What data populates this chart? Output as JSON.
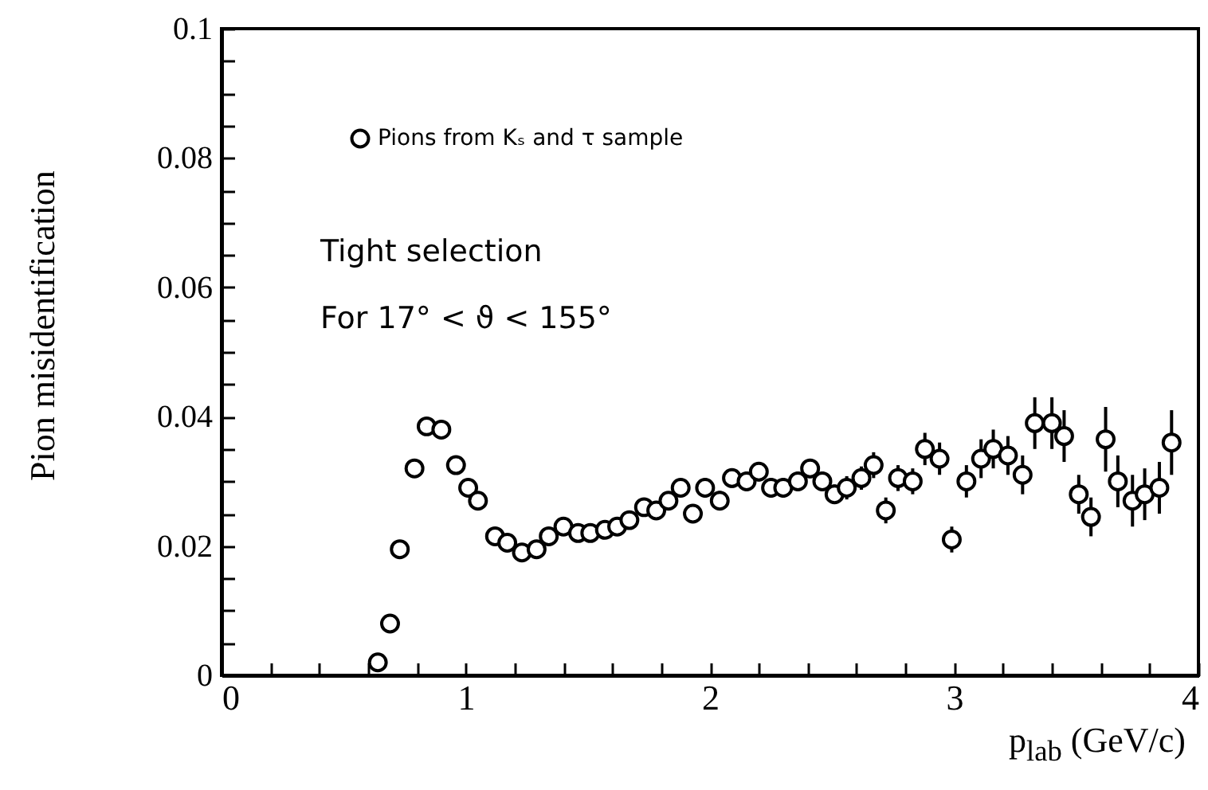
{
  "chart_data": {
    "type": "scatter",
    "xlabel": "p$_{lab}$ (GeV/c)",
    "ylabel": "Pion misidentification",
    "annotations": [
      "Tight selection",
      "For  17° < ϑ < 155°"
    ],
    "x": [
      0.64,
      0.69,
      0.73,
      0.79,
      0.84,
      0.9,
      0.96,
      1.01,
      1.05,
      1.12,
      1.17,
      1.23,
      1.29,
      1.34,
      1.4,
      1.46,
      1.51,
      1.57,
      1.62,
      1.67,
      1.73,
      1.78,
      1.83,
      1.88,
      1.93,
      1.98,
      2.04,
      2.09,
      2.15,
      2.2,
      2.25,
      2.3,
      2.36,
      2.41,
      2.46,
      2.51,
      2.56,
      2.62,
      2.67,
      2.72,
      2.77,
      2.83,
      2.88,
      2.94,
      2.99,
      3.05,
      3.11,
      3.16,
      3.22,
      3.28,
      3.33,
      3.4,
      3.45,
      3.51,
      3.56,
      3.62,
      3.67,
      3.73,
      3.78,
      3.84,
      3.89
    ],
    "series": [
      {
        "name": "Pions from Kₛ and τ sample",
        "color": "#000000",
        "values": [
          0.002,
          0.008,
          0.0195,
          0.032,
          0.0385,
          0.038,
          0.0325,
          0.029,
          0.027,
          0.0215,
          0.0205,
          0.019,
          0.0195,
          0.0215,
          0.023,
          0.022,
          0.022,
          0.0225,
          0.023,
          0.024,
          0.026,
          0.0255,
          0.027,
          0.029,
          0.025,
          0.029,
          0.027,
          0.0305,
          0.03,
          0.0315,
          0.029,
          0.029,
          0.03,
          0.032,
          0.03,
          0.028,
          0.029,
          0.0305,
          0.0325,
          0.0255,
          0.0305,
          0.03,
          0.035,
          0.0335,
          0.021,
          0.03,
          0.0335,
          0.035,
          0.034,
          0.031,
          0.039,
          0.039,
          0.037,
          0.028,
          0.0245,
          0.0365,
          0.03,
          0.027,
          0.028,
          0.029,
          0.036
        ],
        "errors": [
          null,
          null,
          null,
          null,
          null,
          null,
          null,
          null,
          null,
          null,
          null,
          null,
          null,
          null,
          null,
          null,
          null,
          null,
          null,
          0.001,
          0.001,
          0.001,
          0.0012,
          0.0012,
          0.0012,
          0.0015,
          0.0015,
          0.0015,
          0.0015,
          0.0015,
          0.0015,
          0.0015,
          0.0015,
          0.0015,
          0.0015,
          0.0015,
          0.0018,
          0.0018,
          0.002,
          0.002,
          0.002,
          0.002,
          0.0025,
          0.0025,
          0.002,
          0.0025,
          0.003,
          0.003,
          0.003,
          0.003,
          0.004,
          0.004,
          0.004,
          0.003,
          0.003,
          0.005,
          0.004,
          0.004,
          0.004,
          0.004,
          0.005
        ]
      }
    ],
    "marker": "circle",
    "legend": "top left",
    "xlim": [
      0,
      4
    ],
    "xticks": [
      0,
      {
        "value": 0.2,
        "label": null
      },
      {
        "value": 0.4,
        "label": null
      },
      {
        "value": 0.6,
        "label": null
      },
      {
        "value": 0.8,
        "label": null
      },
      1,
      {
        "value": 1.2,
        "label": null
      },
      {
        "value": 1.4,
        "label": null
      },
      {
        "value": 1.6,
        "label": null
      },
      {
        "value": 1.8,
        "label": null
      },
      2,
      {
        "value": 2.2,
        "label": null
      },
      {
        "value": 2.4,
        "label": null
      },
      {
        "value": 2.6,
        "label": null
      },
      {
        "value": 2.8,
        "label": null
      },
      3,
      {
        "value": 3.2,
        "label": null
      },
      {
        "value": 3.4,
        "label": null
      },
      {
        "value": 3.6,
        "label": null
      },
      {
        "value": 3.8,
        "label": null
      },
      4
    ],
    "ylim": [
      0,
      0.1
    ],
    "yticks": [
      0,
      {
        "value": 0.005,
        "label": null
      },
      {
        "value": 0.01,
        "label": null
      },
      {
        "value": 0.015,
        "label": null
      },
      0.02,
      {
        "value": 0.025,
        "label": null
      },
      {
        "value": 0.03,
        "label": null
      },
      {
        "value": 0.035,
        "label": null
      },
      0.04,
      {
        "value": 0.045,
        "label": null
      },
      {
        "value": 0.05,
        "label": null
      },
      {
        "value": 0.055,
        "label": null
      },
      0.06,
      {
        "value": 0.065,
        "label": null
      },
      {
        "value": 0.07,
        "label": null
      },
      {
        "value": 0.075,
        "label": null
      },
      0.08,
      {
        "value": 0.085,
        "label": null
      },
      {
        "value": 0.09,
        "label": null
      },
      {
        "value": 0.095,
        "label": null
      },
      0.1
    ]
  }
}
